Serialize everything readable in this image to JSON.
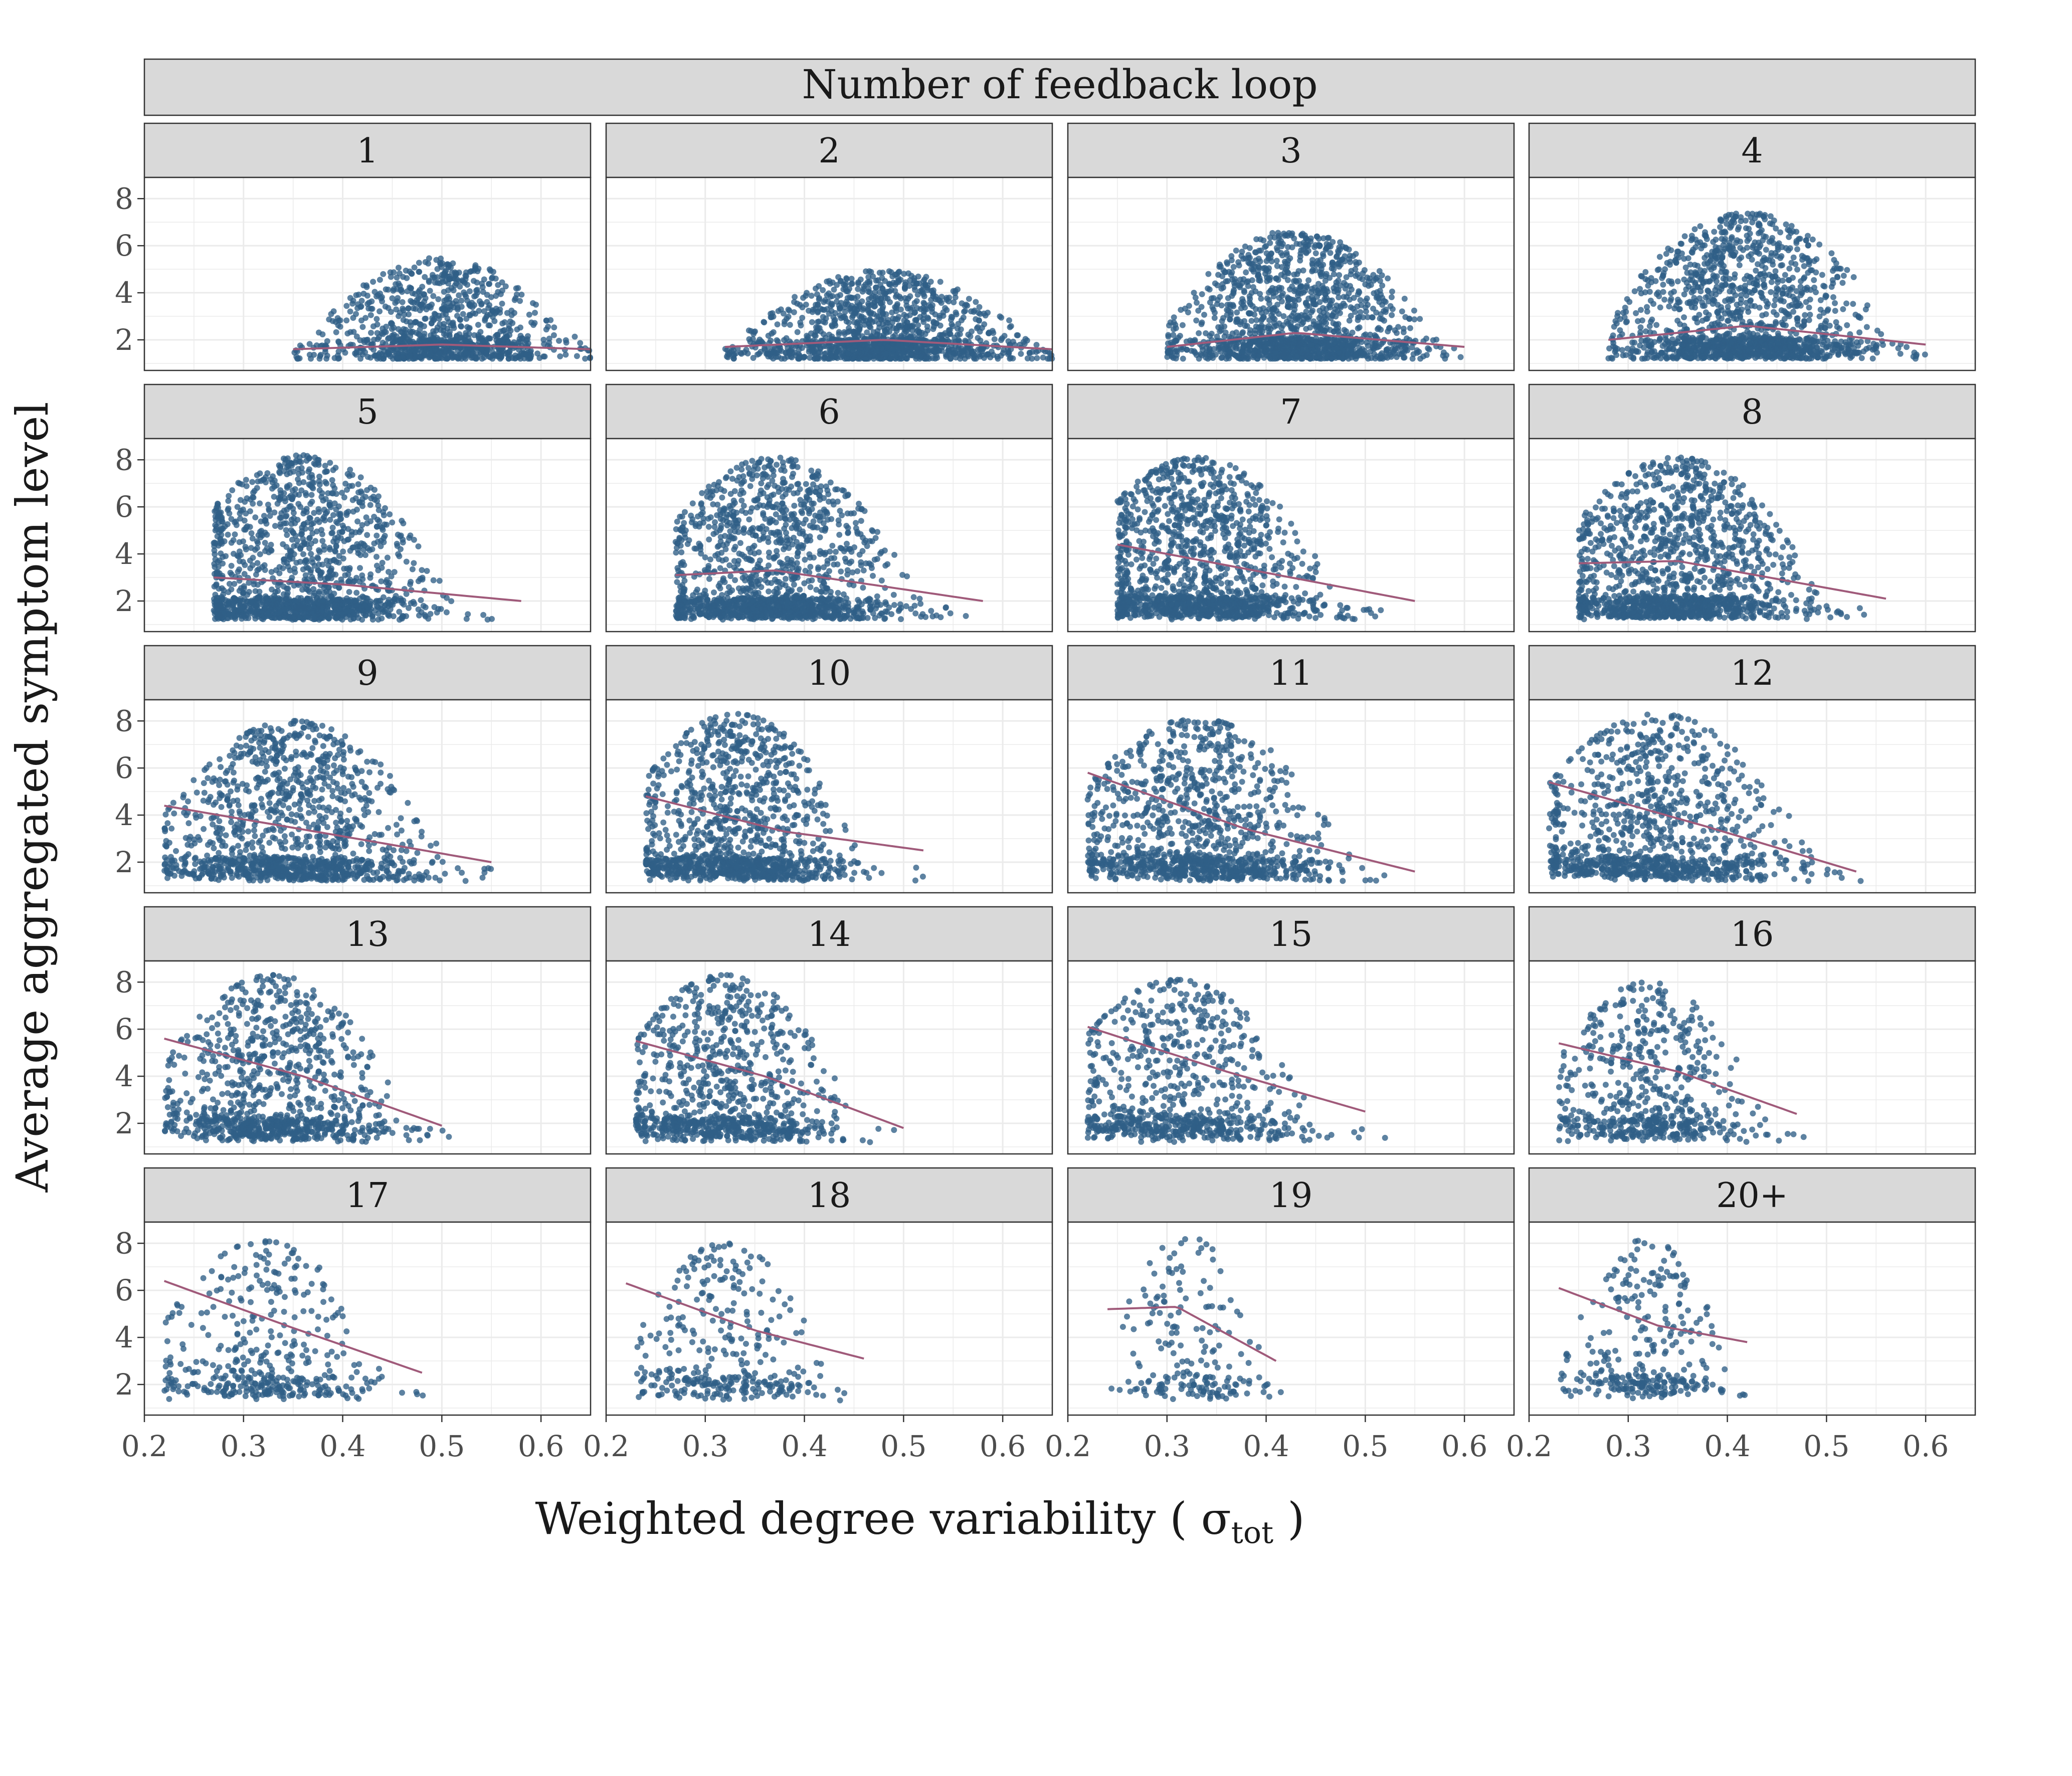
{
  "figure": {
    "strip_title": "Number of feedback loop",
    "xlabel_main": "Weighted degree variability ( σ",
    "xlabel_sub": "tot",
    "xlabel_end": " )",
    "ylabel": "Average aggregated symptom level"
  },
  "colors": {
    "point": "#2f5f87",
    "trend": "#a05a7a",
    "strip_fill": "#d9d9d9",
    "panel_border": "#333333",
    "grid": "#ebebeb",
    "tick_text": "#4d4d4d",
    "title_text": "#1a1a1a"
  },
  "chart_data": {
    "type": "scatter",
    "facet_by": "Number of feedback loop",
    "xlabel": "Weighted degree variability ( σtot )",
    "ylabel": "Average aggregated symptom level",
    "xlim": [
      0.2,
      0.65
    ],
    "ylim": [
      0.7,
      8.9
    ],
    "xticks": [
      0.2,
      0.3,
      0.4,
      0.5,
      0.6
    ],
    "xtick_labels": [
      "0.2",
      "0.3",
      "0.4",
      "0.5",
      "0.6"
    ],
    "yticks": [
      2,
      4,
      6,
      8
    ],
    "ytick_labels": [
      "2",
      "4",
      "6",
      "8"
    ],
    "grid": true,
    "trend_line": "smoothed fit",
    "panels": [
      {
        "label": "1",
        "x_range": [
          0.35,
          0.65
        ],
        "x_center": 0.5,
        "ymax": 5.5,
        "ymin": 1.2,
        "density": 1400,
        "trend": [
          [
            0.35,
            1.6
          ],
          [
            0.5,
            1.8
          ],
          [
            0.65,
            1.6
          ]
        ]
      },
      {
        "label": "2",
        "x_range": [
          0.32,
          0.65
        ],
        "x_center": 0.48,
        "ymax": 5.0,
        "ymin": 1.2,
        "density": 1800,
        "trend": [
          [
            0.32,
            1.7
          ],
          [
            0.48,
            2.0
          ],
          [
            0.65,
            1.6
          ]
        ]
      },
      {
        "label": "3",
        "x_range": [
          0.3,
          0.6
        ],
        "x_center": 0.43,
        "ymax": 6.7,
        "ymin": 1.2,
        "density": 2000,
        "trend": [
          [
            0.3,
            1.7
          ],
          [
            0.43,
            2.3
          ],
          [
            0.6,
            1.7
          ]
        ]
      },
      {
        "label": "4",
        "x_range": [
          0.28,
          0.6
        ],
        "x_center": 0.42,
        "ymax": 7.4,
        "ymin": 1.2,
        "density": 2000,
        "trend": [
          [
            0.28,
            2.0
          ],
          [
            0.42,
            2.6
          ],
          [
            0.6,
            1.8
          ]
        ]
      },
      {
        "label": "5",
        "x_range": [
          0.27,
          0.58
        ],
        "x_center": 0.36,
        "ymax": 8.2,
        "ymin": 1.2,
        "density": 2000,
        "trend": [
          [
            0.27,
            3.0
          ],
          [
            0.4,
            2.7
          ],
          [
            0.58,
            2.0
          ]
        ]
      },
      {
        "label": "6",
        "x_range": [
          0.27,
          0.58
        ],
        "x_center": 0.37,
        "ymax": 8.1,
        "ymin": 1.2,
        "density": 2000,
        "trend": [
          [
            0.27,
            3.1
          ],
          [
            0.37,
            3.3
          ],
          [
            0.58,
            2.0
          ]
        ]
      },
      {
        "label": "7",
        "x_range": [
          0.25,
          0.55
        ],
        "x_center": 0.33,
        "ymax": 8.1,
        "ymin": 1.2,
        "density": 1900,
        "trend": [
          [
            0.25,
            4.4
          ],
          [
            0.4,
            3.2
          ],
          [
            0.55,
            2.0
          ]
        ]
      },
      {
        "label": "8",
        "x_range": [
          0.25,
          0.56
        ],
        "x_center": 0.35,
        "ymax": 8.1,
        "ymin": 1.2,
        "density": 1900,
        "trend": [
          [
            0.25,
            3.6
          ],
          [
            0.35,
            3.7
          ],
          [
            0.56,
            2.1
          ]
        ]
      },
      {
        "label": "9",
        "x_range": [
          0.22,
          0.55
        ],
        "x_center": 0.35,
        "ymax": 8.0,
        "ymin": 1.2,
        "density": 1700,
        "trend": [
          [
            0.22,
            4.4
          ],
          [
            0.4,
            3.1
          ],
          [
            0.55,
            2.0
          ]
        ]
      },
      {
        "label": "10",
        "x_range": [
          0.24,
          0.52
        ],
        "x_center": 0.33,
        "ymax": 8.3,
        "ymin": 1.2,
        "density": 1600,
        "trend": [
          [
            0.24,
            4.8
          ],
          [
            0.38,
            3.3
          ],
          [
            0.52,
            2.5
          ]
        ]
      },
      {
        "label": "11",
        "x_range": [
          0.22,
          0.55
        ],
        "x_center": 0.33,
        "ymax": 8.1,
        "ymin": 1.2,
        "density": 1500,
        "trend": [
          [
            0.22,
            5.8
          ],
          [
            0.38,
            3.4
          ],
          [
            0.55,
            1.6
          ]
        ]
      },
      {
        "label": "12",
        "x_range": [
          0.22,
          0.55
        ],
        "x_center": 0.33,
        "ymax": 8.3,
        "ymin": 1.2,
        "density": 1400,
        "trend": [
          [
            0.22,
            5.4
          ],
          [
            0.38,
            3.5
          ],
          [
            0.53,
            1.6
          ]
        ]
      },
      {
        "label": "13",
        "x_range": [
          0.22,
          0.51
        ],
        "x_center": 0.33,
        "ymax": 8.3,
        "ymin": 1.2,
        "density": 1300,
        "trend": [
          [
            0.22,
            5.6
          ],
          [
            0.36,
            4.0
          ],
          [
            0.5,
            1.9
          ]
        ]
      },
      {
        "label": "14",
        "x_range": [
          0.23,
          0.51
        ],
        "x_center": 0.32,
        "ymax": 8.3,
        "ymin": 1.2,
        "density": 1200,
        "trend": [
          [
            0.23,
            5.5
          ],
          [
            0.36,
            4.0
          ],
          [
            0.5,
            1.8
          ]
        ]
      },
      {
        "label": "15",
        "x_range": [
          0.22,
          0.52
        ],
        "x_center": 0.31,
        "ymax": 8.1,
        "ymin": 1.2,
        "density": 1000,
        "trend": [
          [
            0.22,
            6.1
          ],
          [
            0.36,
            4.2
          ],
          [
            0.5,
            2.5
          ]
        ]
      },
      {
        "label": "16",
        "x_range": [
          0.23,
          0.48
        ],
        "x_center": 0.32,
        "ymax": 8.0,
        "ymin": 1.2,
        "density": 800,
        "trend": [
          [
            0.23,
            5.4
          ],
          [
            0.35,
            4.2
          ],
          [
            0.47,
            2.4
          ]
        ]
      },
      {
        "label": "17",
        "x_range": [
          0.22,
          0.49
        ],
        "x_center": 0.32,
        "ymax": 8.1,
        "ymin": 1.3,
        "density": 550,
        "trend": [
          [
            0.22,
            6.4
          ],
          [
            0.35,
            4.4
          ],
          [
            0.48,
            2.5
          ]
        ]
      },
      {
        "label": "18",
        "x_range": [
          0.23,
          0.46
        ],
        "x_center": 0.32,
        "ymax": 8.0,
        "ymin": 1.3,
        "density": 450,
        "trend": [
          [
            0.22,
            6.3
          ],
          [
            0.35,
            4.3
          ],
          [
            0.46,
            3.1
          ]
        ]
      },
      {
        "label": "19",
        "x_range": [
          0.24,
          0.42
        ],
        "x_center": 0.32,
        "ymax": 8.3,
        "ymin": 1.3,
        "density": 260,
        "trend": [
          [
            0.24,
            5.2
          ],
          [
            0.31,
            5.3
          ],
          [
            0.41,
            3.0
          ]
        ]
      },
      {
        "label": "20+",
        "x_range": [
          0.23,
          0.42
        ],
        "x_center": 0.32,
        "ymax": 8.2,
        "ymin": 1.3,
        "density": 420,
        "trend": [
          [
            0.23,
            6.1
          ],
          [
            0.33,
            4.5
          ],
          [
            0.42,
            3.8
          ]
        ]
      }
    ]
  }
}
